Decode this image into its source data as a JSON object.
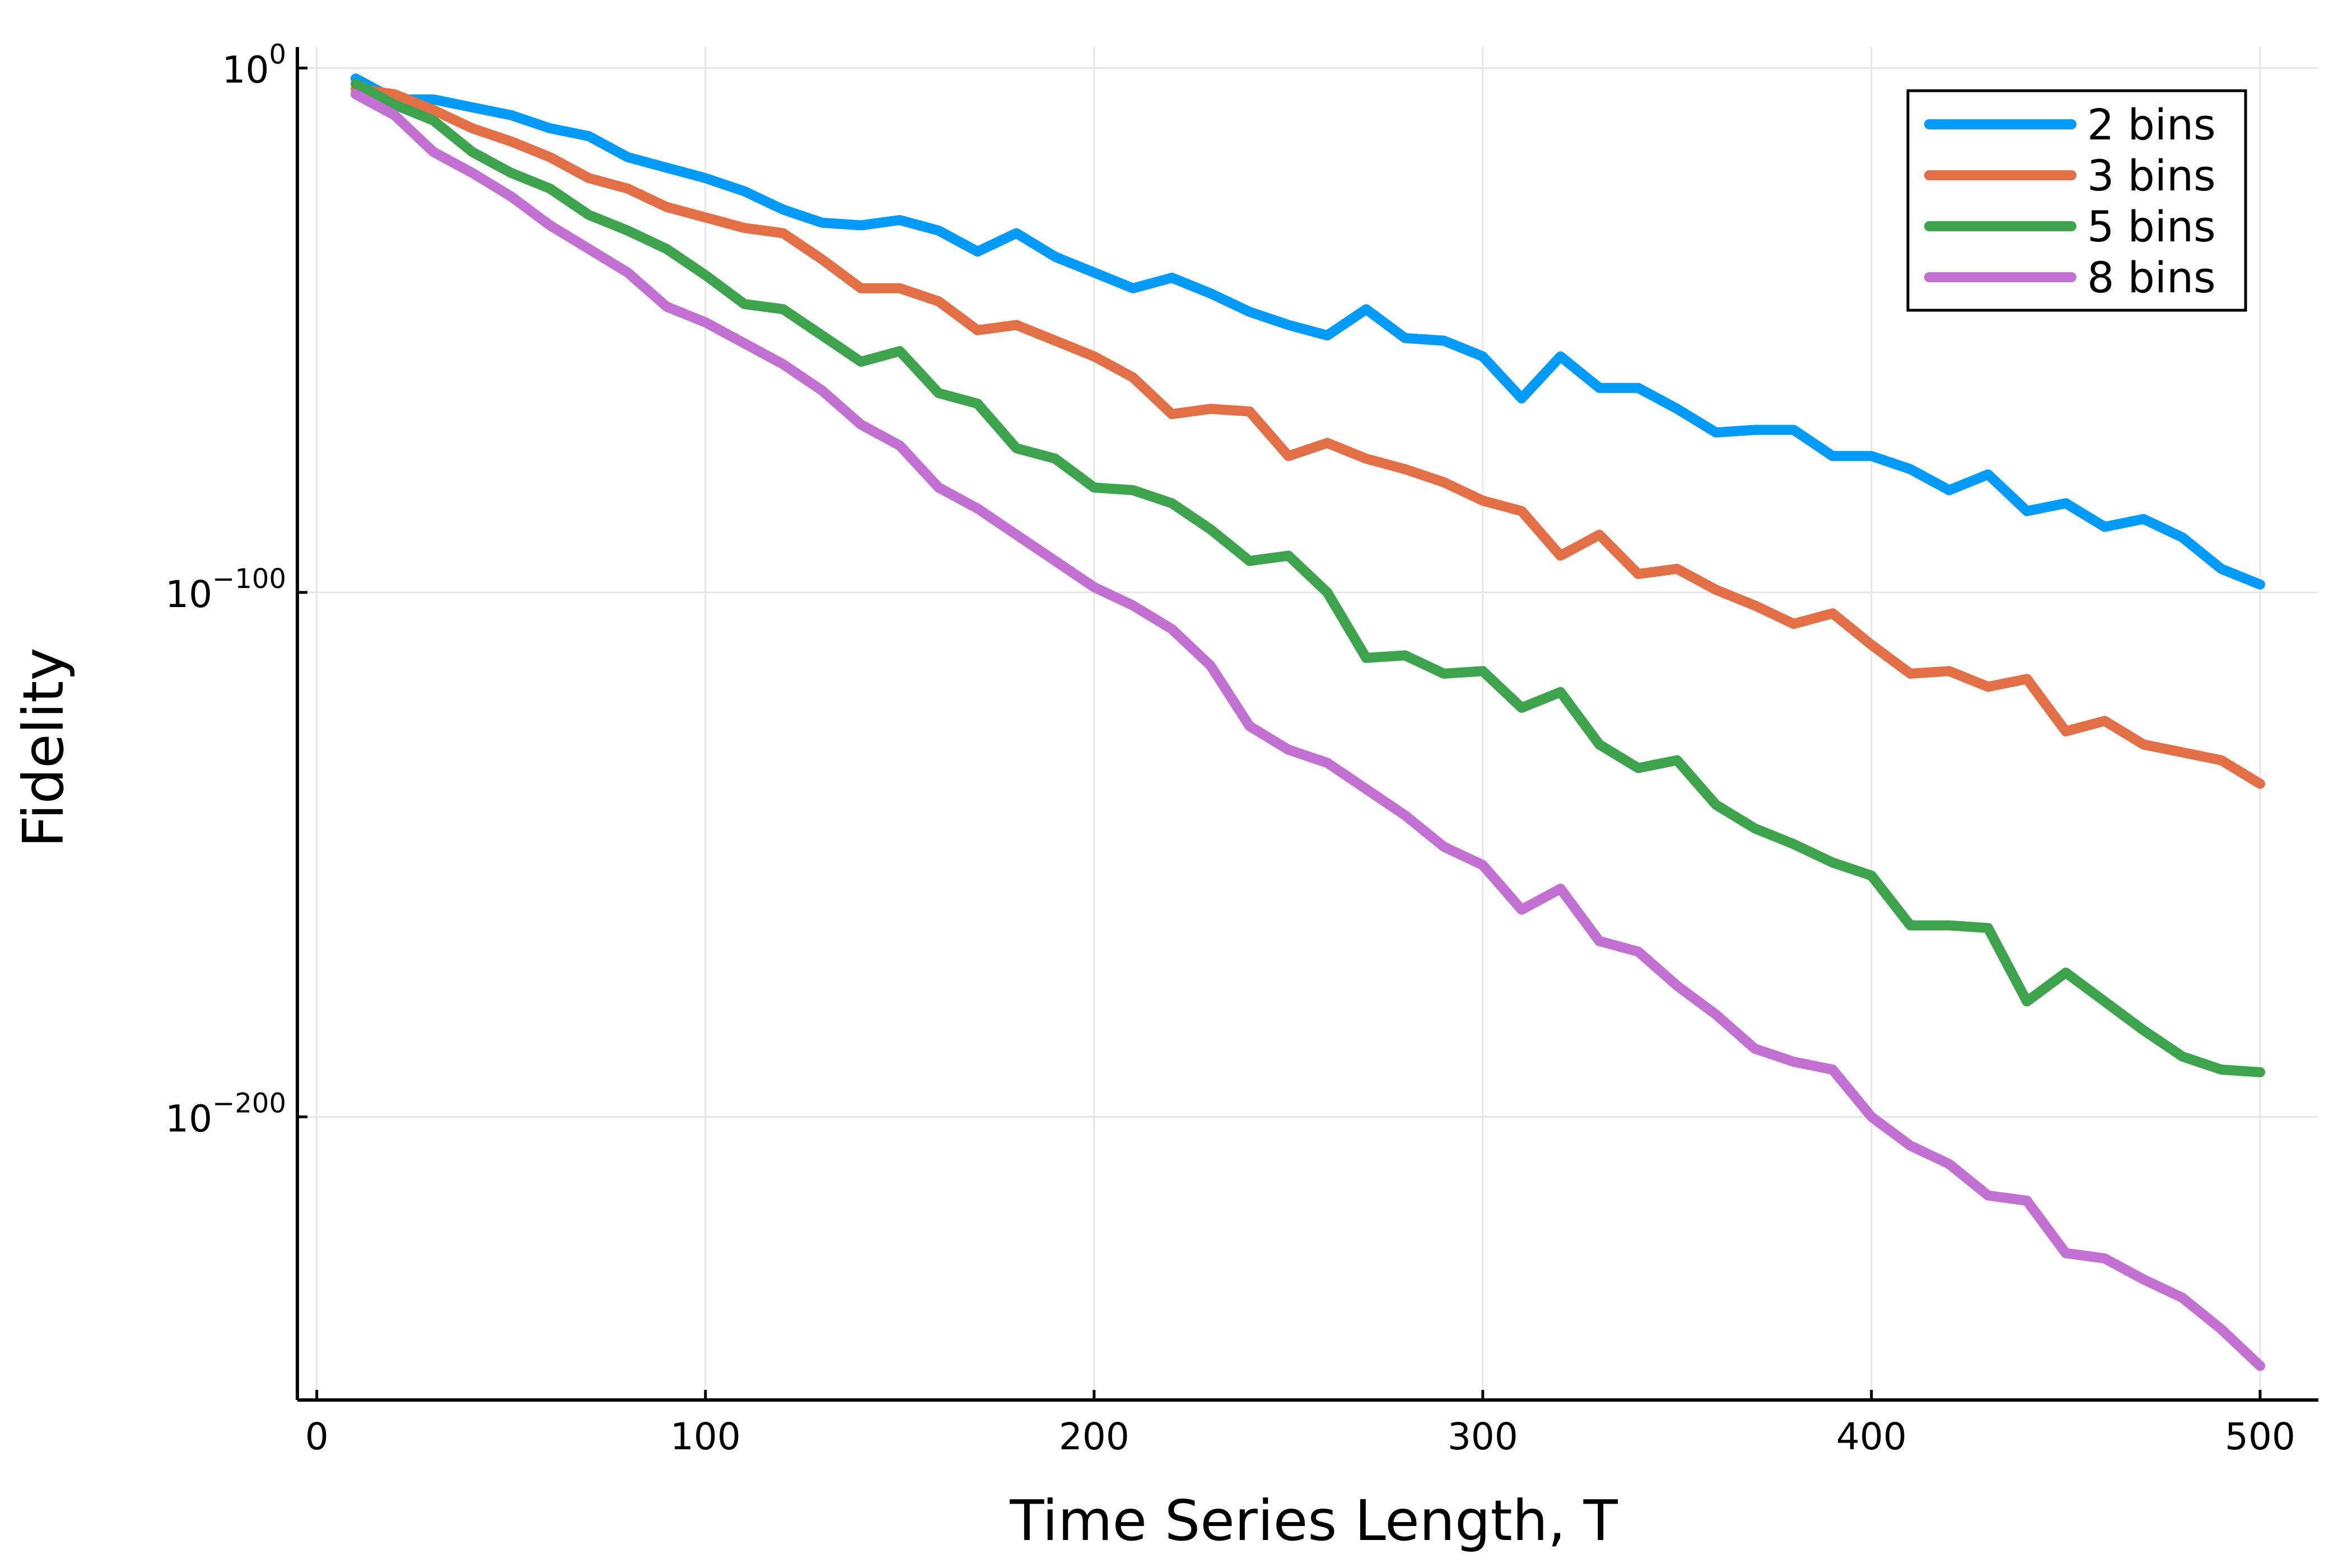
{
  "chart_data": {
    "type": "line",
    "title": "",
    "xlabel": "Time Series Length, T",
    "ylabel": "Fidelity",
    "xlim": [
      -5,
      515
    ],
    "xticks": [
      0,
      100,
      200,
      300,
      400,
      500
    ],
    "xtick_labels": [
      "0",
      "100",
      "200",
      "300",
      "400",
      "500"
    ],
    "yscale": "log10",
    "ylim_log10": [
      -254,
      4
    ],
    "yticks_log10": [
      0,
      -100,
      -200
    ],
    "ytick_labels": [
      {
        "base": "10",
        "exp": "0"
      },
      {
        "base": "10",
        "exp": "−100"
      },
      {
        "base": "10",
        "exp": "−200"
      }
    ],
    "grid": true,
    "legend_position": "top-right",
    "x": [
      10,
      20,
      30,
      40,
      50,
      60,
      70,
      80,
      90,
      100,
      110,
      120,
      130,
      140,
      150,
      160,
      170,
      180,
      190,
      200,
      210,
      220,
      230,
      240,
      250,
      260,
      270,
      280,
      290,
      300,
      310,
      320,
      330,
      340,
      350,
      360,
      370,
      380,
      390,
      400,
      410,
      420,
      430,
      440,
      450,
      460,
      470,
      480,
      490,
      500
    ],
    "series": [
      {
        "name": "2 bins",
        "color": "#009af9",
        "values_log10": [
          -2,
          -6,
          -6,
          -7.5,
          -9,
          -11.5,
          -13,
          -17,
          -19,
          -21,
          -23.5,
          -27,
          -29.5,
          -30,
          -29,
          -31,
          -35,
          -31.5,
          -36,
          -39,
          -42,
          -40,
          -43,
          -46.5,
          -49,
          -51,
          -46,
          -51.5,
          -52,
          -55,
          -63,
          -55,
          -61,
          -61,
          -65,
          -69.5,
          -69,
          -69,
          -74,
          -74,
          -76.5,
          -80.5,
          -77.5,
          -84.5,
          -83,
          -87.5,
          -86,
          -89.5,
          -95.5,
          -98.5
        ]
      },
      {
        "name": "3 bins",
        "color": "#e26f46",
        "values_log10": [
          -4,
          -5,
          -8,
          -11.5,
          -14,
          -17,
          -21,
          -23,
          -26.5,
          -28.5,
          -30.5,
          -31.5,
          -36.5,
          -42,
          -42,
          -44.5,
          -50,
          -49,
          -52,
          -55,
          -59,
          -66,
          -65,
          -65.5,
          -74,
          -71.5,
          -74.5,
          -76.5,
          -79,
          -82.5,
          -84.5,
          -93,
          -89,
          -96.5,
          -95.5,
          -99.5,
          -102.5,
          -106,
          -104,
          -110,
          -115.5,
          -115,
          -118,
          -116.5,
          -126.5,
          -124.5,
          -129,
          -130.5,
          -132,
          -136.5
        ]
      },
      {
        "name": "5 bins",
        "color": "#3da44d",
        "values_log10": [
          -3,
          -7,
          -10,
          -16,
          -20,
          -23,
          -28,
          -31,
          -34.5,
          -39.5,
          -45,
          -46,
          -51,
          -56,
          -54,
          -62,
          -64,
          -72.5,
          -74.5,
          -80,
          -80.5,
          -83,
          -88,
          -94,
          -93,
          -100,
          -112.5,
          -112,
          -115.5,
          -115,
          -122,
          -119,
          -129,
          -133.5,
          -132,
          -140.5,
          -145,
          -148,
          -151.5,
          -154,
          -163.5,
          -163.5,
          -164,
          -178,
          -172.5,
          -178,
          -183.5,
          -188.5,
          -191,
          -191.5
        ]
      },
      {
        "name": "8 bins",
        "color": "#c271d2",
        "values_log10": [
          -5,
          -9,
          -16,
          -20,
          -24.5,
          -30,
          -34.5,
          -39,
          -45.5,
          -48.5,
          -52.5,
          -56.5,
          -61.5,
          -68,
          -72,
          -80,
          -84,
          -89,
          -94,
          -99,
          -102.5,
          -107,
          -114,
          -125.5,
          -130,
          -132.5,
          -137.5,
          -142.5,
          -148.5,
          -152,
          -160.5,
          -156.5,
          -166.5,
          -168.5,
          -175,
          -180.5,
          -187,
          -189.5,
          -191,
          -200,
          -205.5,
          -209,
          -215,
          -216,
          -226,
          -227,
          -231,
          -234.5,
          -240.5,
          -247.5
        ]
      }
    ]
  }
}
